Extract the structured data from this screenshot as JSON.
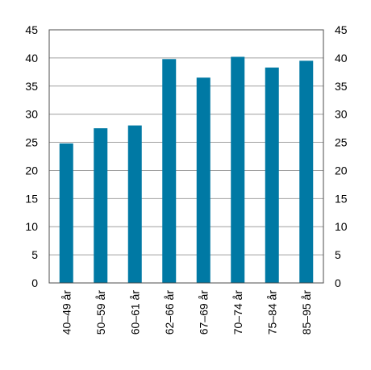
{
  "chart_data": {
    "type": "bar",
    "title": "",
    "xlabel": "",
    "ylabel": "",
    "categories": [
      "40–49 år",
      "50–59 år",
      "60–61 år",
      "62–66 år",
      "67–69 år",
      "70–74 år",
      "75–84 år",
      "85–95 år"
    ],
    "values": [
      24.8,
      27.5,
      28.0,
      39.8,
      36.5,
      40.2,
      38.3,
      39.5
    ],
    "ylim": [
      0,
      45
    ],
    "yticks": [
      0,
      5,
      10,
      15,
      20,
      25,
      30,
      35,
      40,
      45
    ],
    "y_axis_both_sides": true,
    "grid": true,
    "legend": "none",
    "colors": {
      "bar": "#0079a4",
      "grid": "#a0a0a0",
      "axis": "#4d4d4d"
    }
  }
}
